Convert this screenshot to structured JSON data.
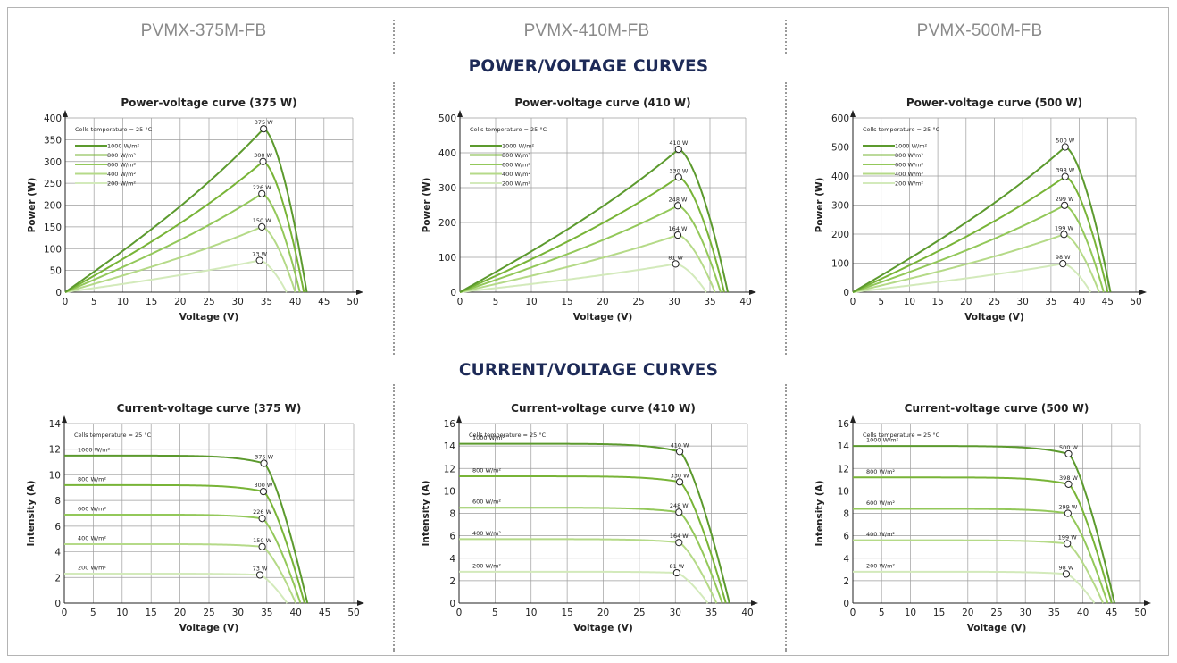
{
  "models": [
    "PVMX-375M-FB",
    "PVMX-410M-FB",
    "PVMX-500M-FB"
  ],
  "section_titles": {
    "power": "POWER/VOLTAGE CURVES",
    "current": "CURRENT/VOLTAGE CURVES"
  },
  "colors": {
    "border": "#b4b4b4",
    "model_text": "#8a8a8a",
    "section_title": "#1d2a57",
    "grid": "#9e9e9e",
    "series": [
      "#5c9a2e",
      "#78b437",
      "#93c85a",
      "#b5da88",
      "#d3eabb"
    ]
  },
  "chart_data": [
    {
      "id": "pv375",
      "type": "line",
      "kind": "pv",
      "title": "Power-voltage curve (375 W)",
      "xlabel": "Voltage (V)",
      "ylabel": "Power (W)",
      "xlim": [
        0,
        50
      ],
      "ylim": [
        0,
        400
      ],
      "xticks": [
        0,
        5,
        10,
        15,
        20,
        25,
        30,
        35,
        40,
        45,
        50
      ],
      "yticks": [
        0,
        50,
        100,
        150,
        200,
        250,
        300,
        350,
        400
      ],
      "grid": true,
      "legend": "top-left",
      "note": "Cells temperature = 25 °C",
      "voc": 42.0,
      "series": [
        {
          "name": "1000 W/m²",
          "vmp": 34.5,
          "pmp": 375,
          "voc": 42.0,
          "label": "375 W"
        },
        {
          "name": "800 W/m²",
          "vmp": 34.4,
          "pmp": 300,
          "voc": 41.5,
          "label": "300 W"
        },
        {
          "name": "600 W/m²",
          "vmp": 34.2,
          "pmp": 226,
          "voc": 40.8,
          "label": "226 W"
        },
        {
          "name": "400 W/m²",
          "vmp": 34.2,
          "pmp": 150,
          "voc": 40.0,
          "label": "150 W"
        },
        {
          "name": "200 W/m²",
          "vmp": 33.8,
          "pmp": 73,
          "voc": 38.5,
          "label": "73 W"
        }
      ]
    },
    {
      "id": "pv410",
      "type": "line",
      "kind": "pv",
      "title": "Power-voltage curve (410 W)",
      "xlabel": "Voltage (V)",
      "ylabel": "Power (W)",
      "xlim": [
        0,
        40
      ],
      "ylim": [
        0,
        500
      ],
      "xticks": [
        0,
        5,
        10,
        15,
        20,
        25,
        30,
        35,
        40
      ],
      "yticks": [
        0,
        100,
        200,
        300,
        400,
        500
      ],
      "grid": true,
      "legend": "top-left",
      "note": "Cells temperature = 25 °C",
      "series": [
        {
          "name": "1000 W/m²",
          "vmp": 30.6,
          "pmp": 410,
          "voc": 37.5,
          "label": "410 W"
        },
        {
          "name": "800 W/m²",
          "vmp": 30.6,
          "pmp": 330,
          "voc": 37.0,
          "label": "330 W"
        },
        {
          "name": "600 W/m²",
          "vmp": 30.5,
          "pmp": 248,
          "voc": 36.5,
          "label": "248 W"
        },
        {
          "name": "400 W/m²",
          "vmp": 30.5,
          "pmp": 164,
          "voc": 35.7,
          "label": "164 W"
        },
        {
          "name": "200 W/m²",
          "vmp": 30.2,
          "pmp": 81,
          "voc": 34.5,
          "label": "81 W"
        }
      ]
    },
    {
      "id": "pv500",
      "type": "line",
      "kind": "pv",
      "title": "Power-voltage curve (500 W)",
      "xlabel": "Voltage (V)",
      "ylabel": "Power (W)",
      "xlim": [
        0,
        50
      ],
      "ylim": [
        0,
        600
      ],
      "xticks": [
        0,
        5,
        10,
        15,
        20,
        25,
        30,
        35,
        40,
        45,
        50
      ],
      "yticks": [
        0,
        100,
        200,
        300,
        400,
        500,
        600
      ],
      "grid": true,
      "legend": "top-left",
      "note": "Cells temperature = 25 °C",
      "series": [
        {
          "name": "1000 W/m²",
          "vmp": 37.5,
          "pmp": 500,
          "voc": 45.5,
          "label": "500 W"
        },
        {
          "name": "800 W/m²",
          "vmp": 37.5,
          "pmp": 398,
          "voc": 45.0,
          "label": "398 W"
        },
        {
          "name": "600 W/m²",
          "vmp": 37.4,
          "pmp": 299,
          "voc": 44.3,
          "label": "299 W"
        },
        {
          "name": "400 W/m²",
          "vmp": 37.3,
          "pmp": 199,
          "voc": 43.5,
          "label": "199 W"
        },
        {
          "name": "200 W/m²",
          "vmp": 37.1,
          "pmp": 98,
          "voc": 42.0,
          "label": "98 W"
        }
      ]
    },
    {
      "id": "iv375",
      "type": "line",
      "kind": "iv",
      "title": "Current-voltage curve (375 W)",
      "xlabel": "Voltage (V)",
      "ylabel": "Intensity (A)",
      "xlim": [
        0,
        50
      ],
      "ylim": [
        0,
        14
      ],
      "xticks": [
        0,
        5,
        10,
        15,
        20,
        25,
        30,
        35,
        40,
        45,
        50
      ],
      "yticks": [
        0,
        2,
        4,
        6,
        8,
        10,
        12,
        14
      ],
      "grid": true,
      "note": "Cells temperature = 25 °C",
      "series": [
        {
          "name": "1000 W/m²",
          "isc": 11.5,
          "vmp": 34.5,
          "imp": 10.9,
          "voc": 42.0,
          "label": "375 W"
        },
        {
          "name": "800 W/m²",
          "isc": 9.2,
          "vmp": 34.4,
          "imp": 8.7,
          "voc": 41.5,
          "label": "300 W"
        },
        {
          "name": "600 W/m²",
          "isc": 6.9,
          "vmp": 34.2,
          "imp": 6.6,
          "voc": 40.8,
          "label": "226 W"
        },
        {
          "name": "400 W/m²",
          "isc": 4.6,
          "vmp": 34.2,
          "imp": 4.4,
          "voc": 40.0,
          "label": "150 W"
        },
        {
          "name": "200 W/m²",
          "isc": 2.3,
          "vmp": 33.8,
          "imp": 2.2,
          "voc": 38.5,
          "label": "73 W"
        }
      ]
    },
    {
      "id": "iv410",
      "type": "line",
      "kind": "iv",
      "title": "Current-voltage curve (410 W)",
      "xlabel": "Voltage (V)",
      "ylabel": "Intensity (A)",
      "xlim": [
        0,
        40
      ],
      "ylim": [
        0,
        16
      ],
      "xticks": [
        0,
        5,
        10,
        15,
        20,
        25,
        30,
        35,
        40
      ],
      "yticks": [
        0,
        2,
        4,
        6,
        8,
        10,
        12,
        14,
        16
      ],
      "grid": true,
      "note": "Cells temperature = 25 °C",
      "series": [
        {
          "name": "1000 W/m²",
          "isc": 14.2,
          "vmp": 30.6,
          "imp": 13.5,
          "voc": 37.5,
          "label": "410 W"
        },
        {
          "name": "800 W/m²",
          "isc": 11.3,
          "vmp": 30.6,
          "imp": 10.8,
          "voc": 37.0,
          "label": "330 W"
        },
        {
          "name": "600 W/m²",
          "isc": 8.5,
          "vmp": 30.5,
          "imp": 8.1,
          "voc": 36.5,
          "label": "248 W"
        },
        {
          "name": "400 W/m²",
          "isc": 5.7,
          "vmp": 30.5,
          "imp": 5.4,
          "voc": 35.7,
          "label": "164 W"
        },
        {
          "name": "200 W/m²",
          "isc": 2.8,
          "vmp": 30.2,
          "imp": 2.7,
          "voc": 34.5,
          "label": "81 W"
        }
      ]
    },
    {
      "id": "iv500",
      "type": "line",
      "kind": "iv",
      "title": "Current-voltage curve (500 W)",
      "xlabel": "Voltage (V)",
      "ylabel": "Intensity (A)",
      "xlim": [
        0,
        50
      ],
      "ylim": [
        0,
        16
      ],
      "xticks": [
        0,
        5,
        10,
        15,
        20,
        25,
        30,
        35,
        40,
        45,
        50
      ],
      "yticks": [
        0,
        2,
        4,
        6,
        8,
        10,
        12,
        14,
        16
      ],
      "grid": true,
      "note": "Cells temperature = 25 °C",
      "series": [
        {
          "name": "1000 W/m²",
          "isc": 14.0,
          "vmp": 37.5,
          "imp": 13.3,
          "voc": 45.5,
          "label": "500 W"
        },
        {
          "name": "800 W/m²",
          "isc": 11.2,
          "vmp": 37.5,
          "imp": 10.6,
          "voc": 45.0,
          "label": "398 W"
        },
        {
          "name": "600 W/m²",
          "isc": 8.4,
          "vmp": 37.4,
          "imp": 8.0,
          "voc": 44.3,
          "label": "299 W"
        },
        {
          "name": "400 W/m²",
          "isc": 5.6,
          "vmp": 37.3,
          "imp": 5.3,
          "voc": 43.5,
          "label": "199 W"
        },
        {
          "name": "200 W/m²",
          "isc": 2.8,
          "vmp": 37.1,
          "imp": 2.6,
          "voc": 42.0,
          "label": "98 W"
        }
      ]
    }
  ]
}
